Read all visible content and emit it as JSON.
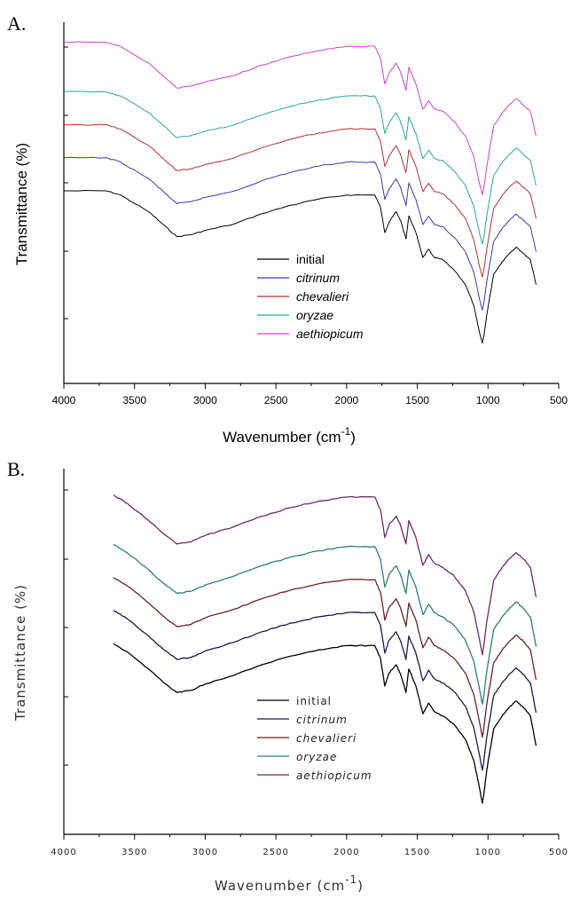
{
  "chart_data": [
    {
      "panel": "A.",
      "type": "line",
      "xlabel": "Wavenumber (cm",
      "xlabel_sup": "-1",
      "xlabel_close": ")",
      "ylabel": "Transmittance (%)",
      "xlim": [
        4000,
        500
      ],
      "x_reversed": true,
      "xticks": [
        4000,
        3500,
        3000,
        2500,
        2000,
        1500,
        1000,
        500
      ],
      "grid": false,
      "legend_position": "center-right",
      "x": [
        4000,
        3700,
        3600,
        3400,
        3300,
        3200,
        3100,
        3000,
        2800,
        2600,
        2400,
        2200,
        2000,
        1800,
        1760,
        1730,
        1700,
        1650,
        1620,
        1580,
        1560,
        1510,
        1460,
        1420,
        1380,
        1320,
        1240,
        1160,
        1100,
        1060,
        1040,
        1030,
        1010,
        960,
        900,
        850,
        800,
        750,
        700,
        660
      ],
      "series": [
        {
          "name": "initial",
          "italic": false,
          "color": "#000000",
          "offset": 0,
          "values": [
            80,
            80,
            78,
            70,
            64,
            58,
            59,
            61,
            64,
            69,
            73,
            76,
            78,
            78,
            72,
            60,
            65,
            70,
            66,
            57,
            68,
            60,
            48,
            52,
            48,
            47,
            42,
            35,
            25,
            12,
            7,
            10,
            20,
            40,
            46,
            50,
            53,
            50,
            47,
            35
          ]
        },
        {
          "name": "citrinum",
          "italic": true,
          "color": "#3a3aa8",
          "offset": 12,
          "values": [
            80,
            80,
            78,
            70,
            64,
            58,
            59,
            61,
            64,
            69,
            73,
            76,
            78,
            78,
            72,
            60,
            65,
            70,
            66,
            57,
            68,
            60,
            48,
            52,
            48,
            47,
            42,
            35,
            25,
            12,
            7,
            10,
            20,
            40,
            46,
            50,
            53,
            50,
            47,
            35
          ]
        },
        {
          "name": "chevalieri",
          "italic": true,
          "color": "#b03232",
          "offset": 24,
          "values": [
            80,
            80,
            78,
            70,
            64,
            58,
            59,
            61,
            64,
            69,
            73,
            76,
            78,
            78,
            72,
            60,
            65,
            70,
            66,
            57,
            68,
            60,
            48,
            52,
            48,
            47,
            42,
            35,
            25,
            12,
            7,
            10,
            20,
            40,
            46,
            50,
            53,
            50,
            47,
            35
          ]
        },
        {
          "name": "oryzae",
          "italic": true,
          "color": "#2aa69a",
          "offset": 36,
          "values": [
            80,
            80,
            78,
            70,
            64,
            58,
            59,
            61,
            64,
            69,
            73,
            76,
            78,
            78,
            72,
            60,
            65,
            70,
            66,
            57,
            68,
            60,
            48,
            52,
            48,
            47,
            42,
            35,
            25,
            12,
            7,
            10,
            20,
            40,
            46,
            50,
            53,
            50,
            47,
            35
          ]
        },
        {
          "name": "aethiopicum",
          "italic": true,
          "color": "#cc44cc",
          "offset": 54,
          "values": [
            80,
            80,
            78,
            70,
            64,
            58,
            59,
            61,
            64,
            69,
            73,
            76,
            78,
            78,
            72,
            60,
            65,
            70,
            66,
            57,
            68,
            60,
            48,
            52,
            48,
            47,
            42,
            35,
            25,
            12,
            7,
            10,
            20,
            40,
            46,
            50,
            53,
            50,
            47,
            35
          ]
        }
      ]
    },
    {
      "panel": "B.",
      "type": "line",
      "xlabel": "Wavenumber (cm",
      "xlabel_sup": "-1",
      "xlabel_close": ")",
      "ylabel": "Transmittance (%)",
      "xlim": [
        4000,
        500
      ],
      "x_reversed": true,
      "xticks": [
        4000,
        3500,
        3000,
        2500,
        2000,
        1500,
        1000,
        500
      ],
      "grid": false,
      "legend_position": "center-right",
      "x": [
        3650,
        3550,
        3400,
        3300,
        3200,
        3100,
        3000,
        2800,
        2600,
        2400,
        2200,
        2000,
        1800,
        1760,
        1730,
        1700,
        1650,
        1620,
        1580,
        1560,
        1510,
        1460,
        1420,
        1380,
        1320,
        1240,
        1160,
        1100,
        1060,
        1040,
        1030,
        1010,
        960,
        900,
        850,
        800,
        750,
        700,
        660
      ],
      "series": [
        {
          "name": "initial",
          "italic": false,
          "color": "#000000",
          "offset": 0,
          "values": [
            80,
            76,
            68,
            62,
            57,
            58,
            61,
            65,
            70,
            74,
            77,
            79,
            79,
            73,
            60,
            66,
            70,
            66,
            57,
            68,
            60,
            47,
            52,
            48,
            46,
            42,
            35,
            25,
            12,
            5,
            9,
            20,
            40,
            46,
            50,
            53,
            50,
            46,
            32
          ]
        },
        {
          "name": "citrinum",
          "italic": true,
          "color": "#1a1a4a",
          "offset": 12,
          "values": [
            80,
            76,
            68,
            62,
            57,
            58,
            61,
            65,
            70,
            74,
            77,
            79,
            79,
            73,
            60,
            66,
            70,
            66,
            57,
            68,
            60,
            47,
            52,
            48,
            46,
            42,
            35,
            25,
            12,
            5,
            9,
            20,
            40,
            46,
            50,
            53,
            50,
            46,
            32
          ]
        },
        {
          "name": "chevalieri",
          "italic": true,
          "color": "#6a2222",
          "offset": 24,
          "values": [
            80,
            76,
            68,
            62,
            57,
            58,
            61,
            65,
            70,
            74,
            77,
            79,
            79,
            73,
            60,
            66,
            70,
            66,
            57,
            68,
            60,
            47,
            52,
            48,
            46,
            42,
            35,
            25,
            12,
            5,
            9,
            20,
            40,
            46,
            50,
            53,
            50,
            46,
            32
          ]
        },
        {
          "name": "oryzae",
          "italic": true,
          "color": "#2a7f7a",
          "offset": 36,
          "values": [
            80,
            76,
            68,
            62,
            57,
            58,
            61,
            65,
            70,
            74,
            77,
            79,
            79,
            73,
            60,
            66,
            70,
            66,
            57,
            68,
            60,
            47,
            52,
            48,
            46,
            42,
            35,
            25,
            12,
            5,
            9,
            20,
            40,
            46,
            50,
            53,
            50,
            46,
            32
          ]
        },
        {
          "name": "aethiopicum",
          "italic": true,
          "color": "#6a2a6a",
          "offset": 54,
          "values": [
            80,
            76,
            68,
            62,
            57,
            58,
            61,
            65,
            70,
            74,
            77,
            79,
            79,
            73,
            60,
            66,
            70,
            66,
            57,
            68,
            60,
            47,
            52,
            48,
            46,
            42,
            35,
            25,
            12,
            5,
            9,
            20,
            40,
            46,
            50,
            53,
            50,
            46,
            32
          ]
        }
      ]
    }
  ]
}
